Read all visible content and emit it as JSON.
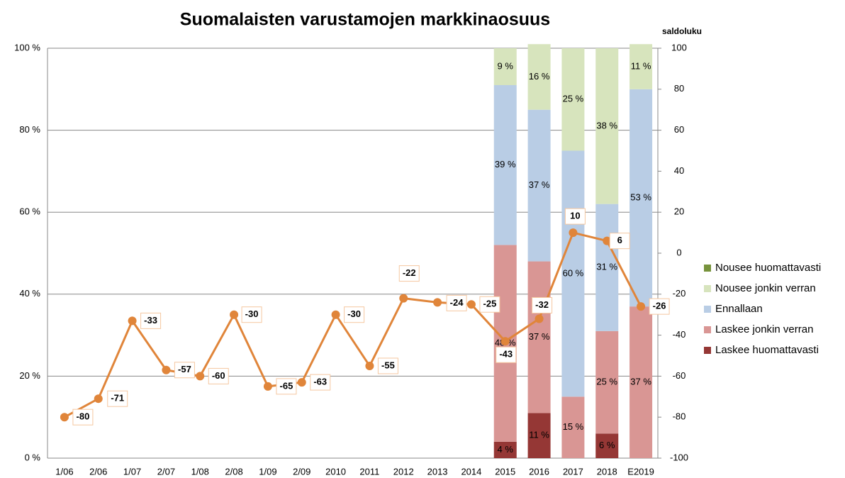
{
  "chart_data": {
    "type": "bar-line",
    "title": "Suomalaisten varustamojen markkinaosuus",
    "y2_label": "saldoluku",
    "categories": [
      "1/06",
      "2/06",
      "1/07",
      "2/07",
      "1/08",
      "2/08",
      "1/09",
      "2/09",
      "2010",
      "2011",
      "2012",
      "2013",
      "2014",
      "2015",
      "2016",
      "2017",
      "2018",
      "E2019"
    ],
    "ylim": [
      0,
      100
    ],
    "yticks": [
      {
        "value": 0,
        "label": "0 %"
      },
      {
        "value": 20,
        "label": "20 %"
      },
      {
        "value": 40,
        "label": "40 %"
      },
      {
        "value": 60,
        "label": "60 %"
      },
      {
        "value": 80,
        "label": "80 %"
      },
      {
        "value": 100,
        "label": "100 %"
      }
    ],
    "y2lim": [
      -100,
      100
    ],
    "y2ticks": [
      -100,
      -80,
      -60,
      -40,
      -20,
      0,
      20,
      40,
      60,
      80,
      100
    ],
    "grid": true,
    "legend": "right",
    "series": [
      {
        "name": "Laskee huomattavasti",
        "color": "#953735",
        "type": "bar",
        "values": [
          null,
          null,
          null,
          null,
          null,
          null,
          null,
          null,
          null,
          null,
          null,
          null,
          null,
          4,
          11,
          null,
          6,
          null
        ],
        "value_labels": [
          null,
          null,
          null,
          null,
          null,
          null,
          null,
          null,
          null,
          null,
          null,
          null,
          null,
          "4 %",
          "11 %",
          null,
          "6 %",
          null
        ]
      },
      {
        "name": "Laskee jonkin verran",
        "color": "#d99694",
        "type": "bar",
        "values": [
          null,
          null,
          null,
          null,
          null,
          null,
          null,
          null,
          null,
          null,
          null,
          null,
          null,
          48,
          37,
          15,
          25,
          37
        ],
        "value_labels": [
          null,
          null,
          null,
          null,
          null,
          null,
          null,
          null,
          null,
          null,
          null,
          null,
          null,
          "48 %",
          "37 %",
          "15 %",
          "25 %",
          "37 %"
        ]
      },
      {
        "name": "Ennallaan",
        "color": "#b9cde5",
        "type": "bar",
        "values": [
          null,
          null,
          null,
          null,
          null,
          null,
          null,
          null,
          null,
          null,
          null,
          null,
          null,
          39,
          37,
          60,
          31,
          53
        ],
        "value_labels": [
          null,
          null,
          null,
          null,
          null,
          null,
          null,
          null,
          null,
          null,
          null,
          null,
          null,
          "39 %",
          "37 %",
          "60 %",
          "31 %",
          "53 %"
        ]
      },
      {
        "name": "Nousee jonkin verran",
        "color": "#d7e4bd",
        "type": "bar",
        "values": [
          null,
          null,
          null,
          null,
          null,
          null,
          null,
          null,
          null,
          null,
          null,
          null,
          null,
          9,
          16,
          25,
          38,
          11
        ],
        "value_labels": [
          null,
          null,
          null,
          null,
          null,
          null,
          null,
          null,
          null,
          null,
          null,
          null,
          null,
          "9 %",
          "16 %",
          "25 %",
          "38 %",
          "11 %"
        ]
      },
      {
        "name": "Nousee huomattavasti",
        "color": "#77933c",
        "type": "bar",
        "values": [
          null,
          null,
          null,
          null,
          null,
          null,
          null,
          null,
          null,
          null,
          null,
          null,
          null,
          null,
          null,
          null,
          null,
          null
        ]
      },
      {
        "color": "#e0853a",
        "type": "line",
        "axis": "y2",
        "values": [
          -80,
          -71,
          -33,
          -57,
          -60,
          -30,
          -65,
          -63,
          -30,
          -55,
          -22,
          -24,
          -25,
          -43,
          -32,
          10,
          6,
          -26
        ]
      }
    ]
  }
}
